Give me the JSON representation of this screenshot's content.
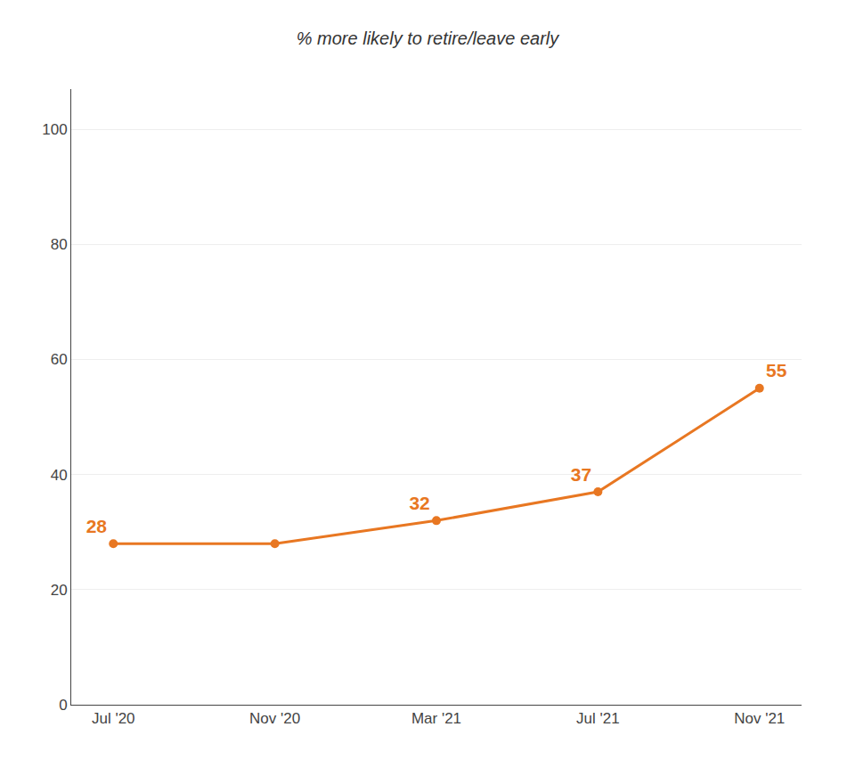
{
  "chart_data": {
    "type": "line",
    "title": "% more likely to retire/leave early",
    "categories": [
      "Jul '20",
      "Nov '20",
      "Mar '21",
      "Jul '21",
      "Nov '21"
    ],
    "values": [
      28,
      28,
      32,
      37,
      55
    ],
    "value_labels": [
      "28",
      null,
      "32",
      "37",
      "55"
    ],
    "data_labels": true,
    "color": "#E87722",
    "marker": "circle",
    "ylim": [
      0,
      107
    ],
    "yticks": [
      0,
      20,
      40,
      60,
      80,
      100
    ],
    "grid": true
  }
}
